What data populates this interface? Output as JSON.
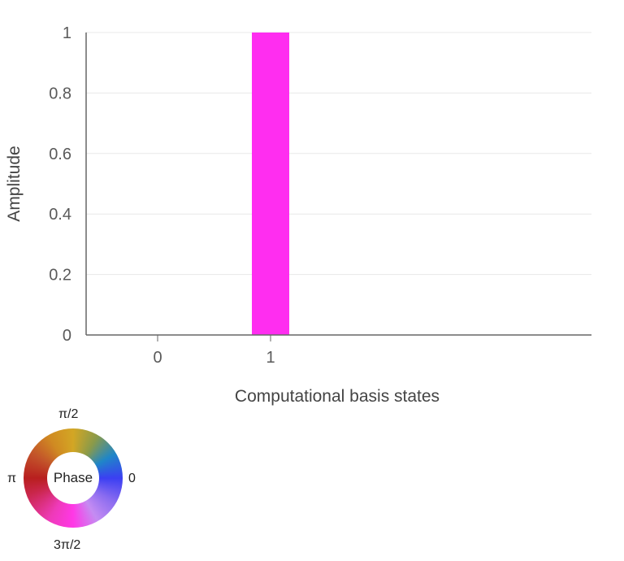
{
  "chart_data": {
    "type": "bar",
    "categories": [
      "0",
      "1"
    ],
    "values": [
      0,
      1
    ],
    "bar_colors": [
      "#ff2df0",
      "#ff2df0"
    ],
    "xlabel": "Computational basis states",
    "ylabel": "Amplitude",
    "ylim": [
      0,
      1
    ],
    "yticks": [
      "0",
      "0.2",
      "0.4",
      "0.6",
      "0.8",
      "1"
    ],
    "grid": true,
    "grid_color": "#e8e8e8",
    "axis_color": "#666666"
  },
  "phase_wheel": {
    "center_label": "Phase",
    "top_label": "π/2",
    "left_label": "π",
    "right_label": "0",
    "bottom_label": "3π/2"
  }
}
